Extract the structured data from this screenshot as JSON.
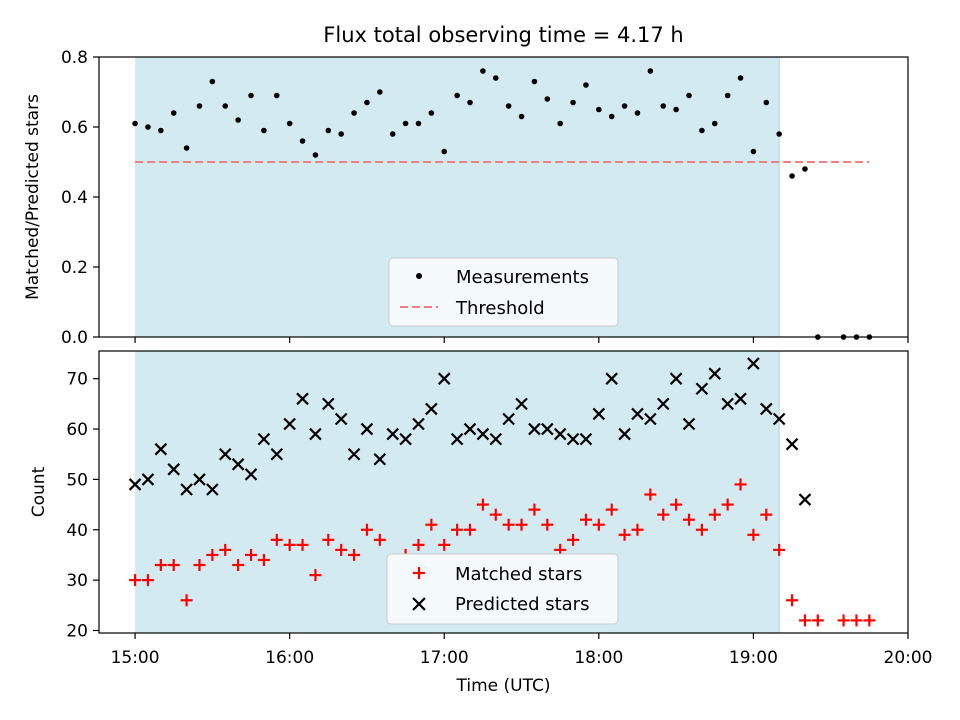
{
  "chart_data": [
    {
      "type": "scatter",
      "title": "Flux total observing time = 4.17 h",
      "ylabel": "Matched/Predicted stars",
      "ylim": [
        0,
        0.8
      ],
      "yticks": [
        "0.0",
        "0.2",
        "0.4",
        "0.6",
        "0.8"
      ],
      "observing_window": [
        "15:00",
        "19:10"
      ],
      "shade_color": "#d4eaf1",
      "threshold": {
        "name": "Threshold",
        "value": 0.5,
        "x": [
          "15:00",
          "19:45"
        ],
        "color": "#f08080"
      },
      "series": [
        {
          "name": "Measurements",
          "color": "#000000",
          "marker": "dot",
          "x": [
            "15:00",
            "15:05",
            "15:10",
            "15:15",
            "15:20",
            "15:25",
            "15:30",
            "15:35",
            "15:40",
            "15:45",
            "15:50",
            "15:55",
            "16:00",
            "16:05",
            "16:10",
            "16:15",
            "16:20",
            "16:25",
            "16:30",
            "16:35",
            "16:40",
            "16:45",
            "16:50",
            "16:55",
            "17:00",
            "17:05",
            "17:10",
            "17:15",
            "17:20",
            "17:25",
            "17:30",
            "17:35",
            "17:40",
            "17:45",
            "17:50",
            "17:55",
            "18:00",
            "18:05",
            "18:10",
            "18:15",
            "18:20",
            "18:25",
            "18:30",
            "18:35",
            "18:40",
            "18:45",
            "18:50",
            "18:55",
            "19:00",
            "19:05",
            "19:10",
            "19:15",
            "19:20",
            "19:25",
            "19:35",
            "19:40",
            "19:45"
          ],
          "y": [
            0.61,
            0.6,
            0.59,
            0.64,
            0.54,
            0.66,
            0.73,
            0.66,
            0.62,
            0.69,
            0.59,
            0.69,
            0.61,
            0.56,
            0.52,
            0.59,
            0.58,
            0.64,
            0.67,
            0.7,
            0.58,
            0.61,
            0.61,
            0.64,
            0.53,
            0.69,
            0.67,
            0.76,
            0.74,
            0.66,
            0.63,
            0.73,
            0.68,
            0.61,
            0.67,
            0.72,
            0.65,
            0.63,
            0.66,
            0.64,
            0.76,
            0.66,
            0.65,
            0.69,
            0.59,
            0.61,
            0.69,
            0.74,
            0.53,
            0.67,
            0.58,
            0.46,
            0.48,
            0.0,
            0.0,
            0.0,
            0.0
          ]
        }
      ],
      "legend": {
        "position": "lower center",
        "entries": [
          "Measurements",
          "Threshold"
        ]
      }
    },
    {
      "type": "scatter",
      "ylabel": "Count",
      "xlabel": "Time (UTC)",
      "ylim": [
        19.5,
        75.5
      ],
      "yticks": [
        20,
        30,
        40,
        50,
        60,
        70
      ],
      "xlim": [
        "14:46",
        "20:00"
      ],
      "xticks": [
        "15:00",
        "16:00",
        "17:00",
        "18:00",
        "19:00",
        "20:00"
      ],
      "observing_window": [
        "15:00",
        "19:10"
      ],
      "shade_color": "#d4eaf1",
      "series": [
        {
          "name": "Matched stars",
          "color": "#ff0000",
          "marker": "plus",
          "x": [
            "15:00",
            "15:05",
            "15:10",
            "15:15",
            "15:20",
            "15:25",
            "15:30",
            "15:35",
            "15:40",
            "15:45",
            "15:50",
            "15:55",
            "16:00",
            "16:05",
            "16:10",
            "16:15",
            "16:20",
            "16:25",
            "16:30",
            "16:35",
            "16:40",
            "16:45",
            "16:50",
            "16:55",
            "17:00",
            "17:05",
            "17:10",
            "17:15",
            "17:20",
            "17:25",
            "17:30",
            "17:35",
            "17:40",
            "17:45",
            "17:50",
            "17:55",
            "18:00",
            "18:05",
            "18:10",
            "18:15",
            "18:20",
            "18:25",
            "18:30",
            "18:35",
            "18:40",
            "18:45",
            "18:50",
            "18:55",
            "19:00",
            "19:05",
            "19:10",
            "19:15",
            "19:20",
            "19:25",
            "19:35",
            "19:40",
            "19:45"
          ],
          "y": [
            30,
            30,
            33,
            33,
            26,
            33,
            35,
            36,
            33,
            35,
            34,
            38,
            37,
            37,
            31,
            38,
            36,
            35,
            40,
            38,
            34,
            35,
            37,
            41,
            37,
            40,
            40,
            45,
            43,
            41,
            41,
            44,
            41,
            36,
            38,
            42,
            41,
            44,
            39,
            40,
            47,
            43,
            45,
            42,
            40,
            43,
            45,
            49,
            39,
            43,
            36,
            26,
            22,
            22,
            22,
            22,
            22
          ]
        },
        {
          "name": "Predicted stars",
          "color": "#000000",
          "marker": "x",
          "x": [
            "15:00",
            "15:05",
            "15:10",
            "15:15",
            "15:20",
            "15:25",
            "15:30",
            "15:35",
            "15:40",
            "15:45",
            "15:50",
            "15:55",
            "16:00",
            "16:05",
            "16:10",
            "16:15",
            "16:20",
            "16:25",
            "16:30",
            "16:35",
            "16:40",
            "16:45",
            "16:50",
            "16:55",
            "17:00",
            "17:05",
            "17:10",
            "17:15",
            "17:20",
            "17:25",
            "17:30",
            "17:35",
            "17:40",
            "17:45",
            "17:50",
            "17:55",
            "18:00",
            "18:05",
            "18:10",
            "18:15",
            "18:20",
            "18:25",
            "18:30",
            "18:35",
            "18:40",
            "18:45",
            "18:50",
            "18:55",
            "19:00",
            "19:05",
            "19:10",
            "19:15",
            "19:20"
          ],
          "y": [
            49,
            50,
            56,
            52,
            48,
            50,
            48,
            55,
            53,
            51,
            58,
            55,
            61,
            66,
            59,
            65,
            62,
            55,
            60,
            54,
            59,
            58,
            61,
            64,
            70,
            58,
            60,
            59,
            58,
            62,
            65,
            60,
            60,
            59,
            58,
            58,
            63,
            70,
            59,
            63,
            62,
            65,
            70,
            61,
            68,
            71,
            65,
            66,
            73,
            64,
            62,
            57,
            46
          ]
        }
      ],
      "legend": {
        "position": "lower center",
        "entries": [
          "Matched stars",
          "Predicted stars"
        ]
      }
    }
  ]
}
